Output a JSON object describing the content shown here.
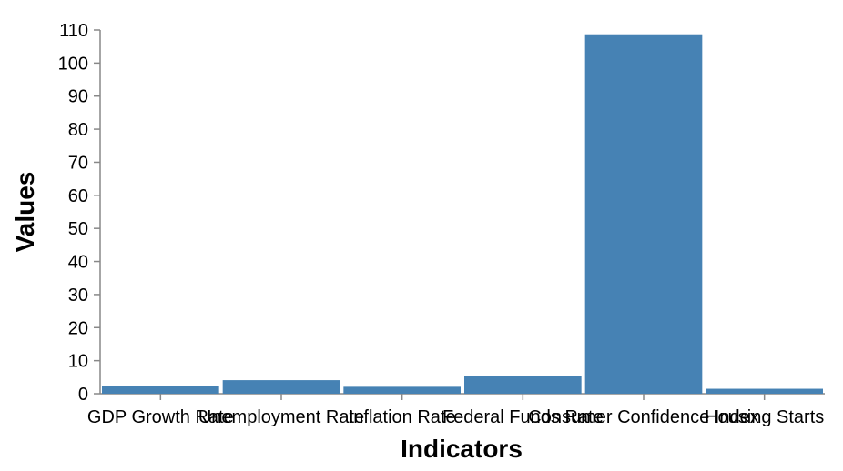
{
  "chart_data": {
    "type": "bar",
    "title": "",
    "xlabel": "Indicators",
    "ylabel": "Values",
    "categories": [
      "GDP Growth Rate",
      "Unemployment Rate",
      "Inflation Rate",
      "Federal Funds Rate",
      "Consumer Confidence Index",
      "Housing Starts"
    ],
    "values": [
      2.3,
      4.1,
      2.1,
      5.5,
      108.7,
      1.5
    ],
    "ylim": [
      0,
      110
    ],
    "yticks": [
      "0",
      "10",
      "20",
      "30",
      "40",
      "50",
      "60",
      "70",
      "80",
      "90",
      "100",
      "110"
    ],
    "grid": false,
    "bar_color": "#4682b4"
  }
}
